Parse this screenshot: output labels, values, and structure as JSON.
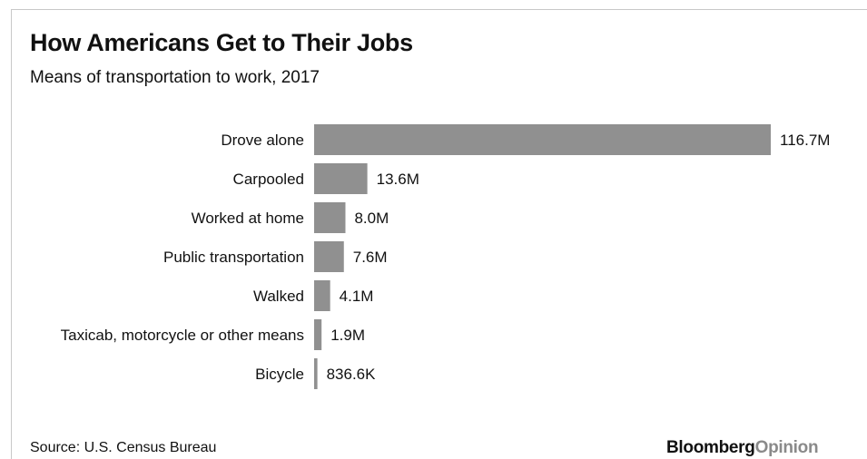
{
  "header": {
    "title": "How Americans Get to Their Jobs",
    "subtitle": "Means of transportation to work, 2017"
  },
  "footer": {
    "source": "Source: U.S. Census Bureau",
    "brand_part1": "Bloomberg",
    "brand_part2": "Opinion"
  },
  "colors": {
    "bar": "#909090",
    "text": "#111111",
    "brand_accent": "#8a8a8a"
  },
  "chart_data": {
    "type": "bar",
    "orientation": "horizontal",
    "title": "How Americans Get to Their Jobs",
    "subtitle": "Means of transportation to work, 2017",
    "categories": [
      "Drove alone",
      "Carpooled",
      "Worked at home",
      "Public transportation",
      "Walked",
      "Taxicab, motorcycle or other means",
      "Bicycle"
    ],
    "values": [
      116.7,
      13.6,
      8.0,
      7.6,
      4.1,
      1.9,
      0.8366
    ],
    "value_labels": [
      "116.7M",
      "13.6M",
      "8.0M",
      "7.6M",
      "4.1M",
      "1.9M",
      "836.6K"
    ],
    "unit": "millions of workers",
    "grid": false,
    "legend": "none"
  }
}
